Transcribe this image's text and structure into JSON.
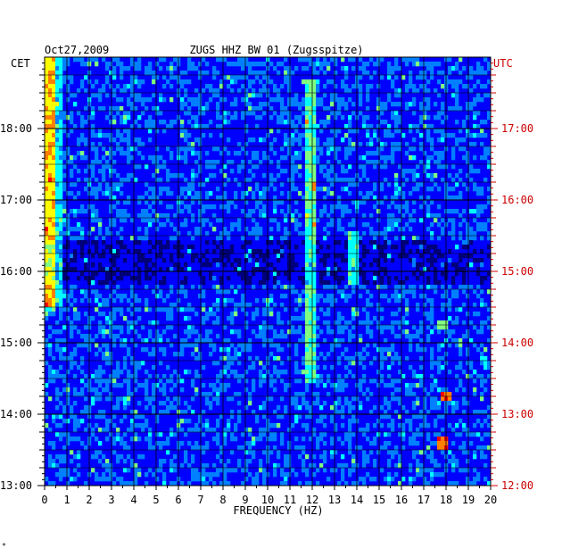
{
  "chart_data": {
    "type": "heatmap",
    "header_date": "Oct27,2009",
    "title": "ZUGS HHZ BW 01 (Zugsspitze)",
    "xlabel": "FREQUENCY (HZ)",
    "left_axis_label": "CET",
    "right_axis_label": "UTC",
    "xlim": [
      0,
      20
    ],
    "x_ticks": [
      "0",
      "1",
      "2",
      "3",
      "4",
      "5",
      "6",
      "7",
      "8",
      "9",
      "10",
      "11",
      "12",
      "13",
      "14",
      "15",
      "16",
      "17",
      "18",
      "19",
      "20"
    ],
    "left_time_ticks": [
      "18:00",
      "17:00",
      "16:00",
      "15:00",
      "14:00",
      "13:00"
    ],
    "right_time_ticks": [
      "17:00",
      "16:00",
      "15:00",
      "14:00",
      "13:00",
      "12:00"
    ],
    "time_range_cet": [
      "13:00",
      "19:00"
    ],
    "grid": true,
    "colormap": [
      "#00007a",
      "#0000ff",
      "#0080ff",
      "#00ffff",
      "#80ff80",
      "#ffff00",
      "#ff8000",
      "#ff0000"
    ],
    "features": [
      {
        "freq_hz": 0.3,
        "from": "15:30",
        "to": "19:00",
        "level": "high"
      },
      {
        "freq_hz": 11.9,
        "from": "14:30",
        "to": "18:40",
        "level": "high"
      },
      {
        "freq_hz": 13.9,
        "from": "15:50",
        "to": "16:30",
        "level": "high"
      },
      {
        "freq_hz": 17.8,
        "from": "15:15",
        "to": "15:17",
        "level": "high"
      },
      {
        "freq_hz": 18.0,
        "from": "14:15",
        "to": "14:17",
        "level": "very-high"
      },
      {
        "freq_hz": 17.8,
        "from": "13:33",
        "to": "13:37",
        "level": "very-high"
      }
    ]
  },
  "footer_mark": "*"
}
